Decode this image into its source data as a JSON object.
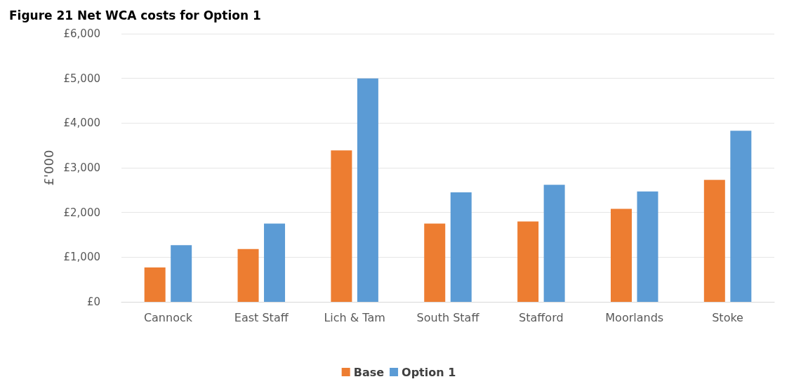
{
  "chart_data": {
    "type": "bar",
    "title": "Figure 21 Net WCA costs for Option 1",
    "ylabel": "£'000",
    "categories": [
      "Cannock",
      "East Staff",
      "Lich & Tam",
      "South Staff",
      "Stafford",
      "Moorlands",
      "Stoke"
    ],
    "series": [
      {
        "name": "Base",
        "color": "#ed7d31",
        "values": [
          770,
          1180,
          3390,
          1750,
          1800,
          2080,
          2730
        ]
      },
      {
        "name": "Option 1",
        "color": "#5b9bd5",
        "values": [
          1270,
          1750,
          5000,
          2450,
          2620,
          2470,
          3830
        ]
      }
    ],
    "ylim": [
      0,
      6000
    ],
    "yticks": [
      {
        "value": 0,
        "label": "£0"
      },
      {
        "value": 1000,
        "label": "£1,000"
      },
      {
        "value": 2000,
        "label": "£2,000"
      },
      {
        "value": 3000,
        "label": "£3,000"
      },
      {
        "value": 4000,
        "label": "£4,000"
      },
      {
        "value": 5000,
        "label": "£5,000"
      },
      {
        "value": 6000,
        "label": "£6,000"
      }
    ],
    "grid": "y",
    "legend": "bottom"
  }
}
